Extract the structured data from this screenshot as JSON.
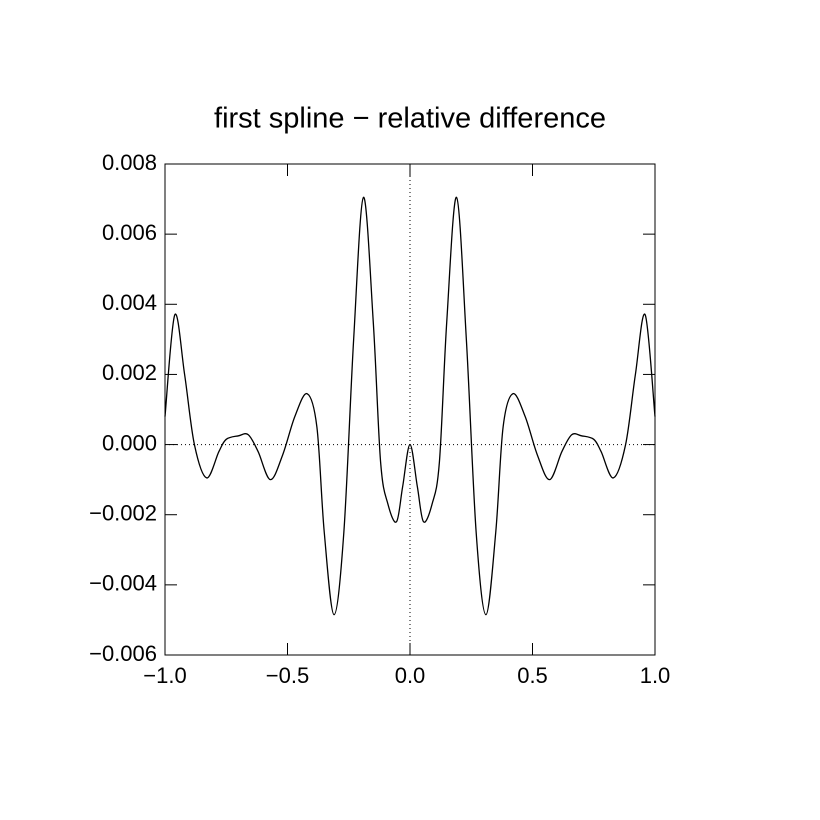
{
  "chart_data": {
    "type": "line",
    "title": "first spline − relative difference",
    "x": [
      -1,
      -0.96,
      -0.92,
      -0.88,
      -0.83,
      -0.78,
      -0.75,
      -0.7,
      -0.66,
      -0.62,
      -0.57,
      -0.52,
      -0.47,
      -0.42,
      -0.38,
      -0.35,
      -0.31,
      -0.27,
      -0.23,
      -0.19,
      -0.15,
      -0.12,
      -0.09,
      -0.055,
      -0.03,
      0,
      0.03,
      0.055,
      0.09,
      0.12,
      0.15,
      0.19,
      0.23,
      0.27,
      0.31,
      0.35,
      0.38,
      0.42,
      0.47,
      0.52,
      0.57,
      0.62,
      0.66,
      0.7,
      0.75,
      0.78,
      0.83,
      0.88,
      0.92,
      0.96,
      1
    ],
    "values": [
      0.0008,
      0.0037,
      0.002,
      0,
      -0.00095,
      -0.0002,
      0.00015,
      0.00025,
      0.00028,
      -0.0002,
      -0.001,
      -0.0003,
      0.0008,
      0.00145,
      0.0005,
      -0.0025,
      -0.00485,
      -0.0025,
      0.003,
      0.00705,
      0.0035,
      -0.0005,
      -0.0017,
      -0.0022,
      -0.0012,
      0,
      -0.0012,
      -0.0022,
      -0.0017,
      -0.0005,
      0.0035,
      0.00705,
      0.003,
      -0.0025,
      -0.00485,
      -0.0025,
      0.0005,
      0.00145,
      0.0008,
      -0.0003,
      -0.001,
      -0.0002,
      0.00028,
      0.00025,
      0.00015,
      -0.0002,
      -0.00095,
      0,
      0.002,
      0.0037,
      0.0008
    ],
    "color": "#000000",
    "xlim": [
      -1,
      1
    ],
    "xticks": [
      {
        "value": -1,
        "label": "−1.0"
      },
      {
        "value": -0.5,
        "label": "−0.5"
      },
      {
        "value": 0,
        "label": "0.0"
      },
      0.5,
      {
        "value": 1,
        "label": "1.0"
      }
    ],
    "ylim": [
      -0.006,
      0.008
    ],
    "yticks": [
      {
        "value": -0.006,
        "label": "−0.006"
      },
      {
        "value": -0.004,
        "label": "−0.004"
      },
      {
        "value": -0.002,
        "label": "−0.002"
      },
      {
        "value": 0,
        "label": "0.000"
      },
      0.002,
      0.004,
      0.006,
      0.008
    ],
    "zero_lines": true
  }
}
